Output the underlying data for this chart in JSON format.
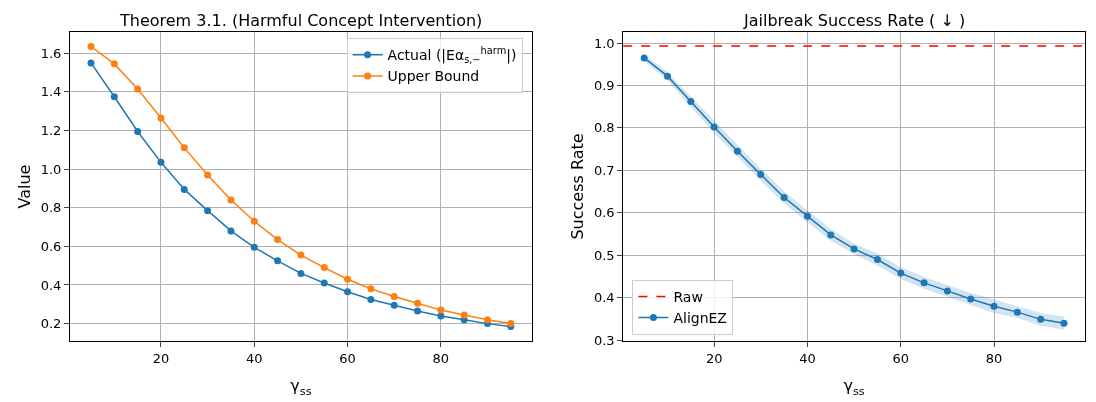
{
  "chart_data": [
    {
      "type": "line",
      "title": "Theorem 3.1. (Harmful Concept Intervention)",
      "xlabel": "γ$_{ss}$",
      "ylabel": "Value",
      "x": [
        5,
        10,
        15,
        20,
        25,
        30,
        35,
        40,
        45,
        50,
        55,
        60,
        65,
        70,
        75,
        80,
        85,
        90,
        95
      ],
      "series": [
        {
          "name": "Actual (|Eα$_{s,−}$$^{harm}$|)",
          "color": "#1f77b4",
          "values": [
            1.55,
            1.375,
            1.195,
            1.035,
            0.895,
            0.785,
            0.68,
            0.595,
            0.525,
            0.46,
            0.41,
            0.365,
            0.325,
            0.295,
            0.265,
            0.24,
            0.22,
            0.2,
            0.185
          ]
        },
        {
          "name": "Upper Bound",
          "color": "#ff7f0e",
          "values": [
            1.635,
            1.545,
            1.415,
            1.265,
            1.11,
            0.97,
            0.84,
            0.73,
            0.635,
            0.555,
            0.49,
            0.43,
            0.38,
            0.34,
            0.305,
            0.27,
            0.245,
            0.22,
            0.2
          ]
        }
      ],
      "xlim": [
        0.5,
        99.5
      ],
      "xticks": [
        20,
        40,
        60,
        80
      ],
      "ylim": [
        0.11,
        1.71
      ],
      "yticks": [
        0.2,
        0.4,
        0.6,
        0.8,
        {
          "value": 1,
          "label": "1.0"
        },
        1.2,
        1.4,
        1.6
      ],
      "grid": true,
      "legend": "top right",
      "marker": "circle",
      "line_style": "solid"
    },
    {
      "type": "line",
      "title": "Jailbreak Success Rate ( ↓ )",
      "xlabel": "γ$_{ss}$",
      "ylabel": "Success Rate",
      "x": [
        5,
        10,
        15,
        20,
        25,
        30,
        35,
        40,
        45,
        50,
        55,
        60,
        65,
        70,
        75,
        80,
        85,
        90,
        95
      ],
      "series": [
        {
          "name": "AlignEZ",
          "color": "#1f77b4",
          "values": [
            0.965,
            0.922,
            0.862,
            0.802,
            0.745,
            0.69,
            0.636,
            0.592,
            0.548,
            0.515,
            0.49,
            0.458,
            0.435,
            0.416,
            0.397,
            0.38,
            0.366,
            0.349,
            0.34
          ],
          "lower": [
            0.957,
            0.912,
            0.85,
            0.788,
            0.731,
            0.676,
            0.622,
            0.578,
            0.534,
            0.503,
            0.476,
            0.444,
            0.421,
            0.402,
            0.383,
            0.364,
            0.352,
            0.334,
            0.325
          ],
          "upper": [
            0.973,
            0.932,
            0.874,
            0.8165,
            0.759,
            0.704,
            0.65,
            0.606,
            0.562,
            0.527,
            0.504,
            0.472,
            0.449,
            0.43,
            0.411,
            0.396,
            0.38,
            0.364,
            0.355
          ]
        }
      ],
      "ref_lines": [
        {
          "axis": "y",
          "value": 0.993,
          "label": "Raw",
          "color": "#ff0000",
          "line_style": "dashed"
        }
      ],
      "xlim": [
        0.5,
        99.5
      ],
      "xticks": [
        20,
        40,
        60,
        80
      ],
      "ylim": [
        0.298,
        1.026
      ],
      "yticks": [
        0.3,
        0.4,
        0.5,
        0.6,
        0.7,
        0.8,
        0.9,
        {
          "value": 1,
          "label": "1.0"
        }
      ],
      "grid": true,
      "legend": "bottom left",
      "marker": "circle",
      "line_style": "solid"
    }
  ]
}
